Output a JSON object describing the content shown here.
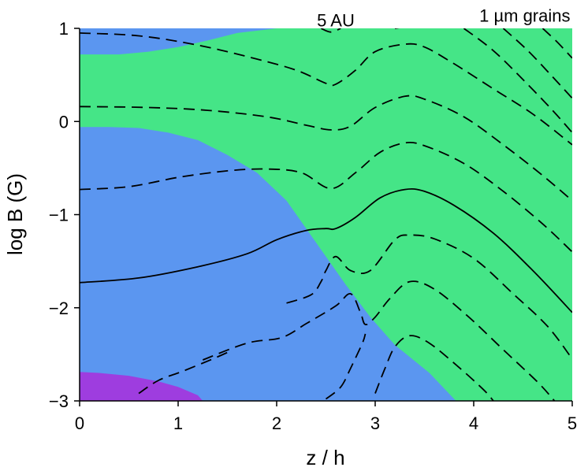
{
  "chart_data": {
    "type": "contour",
    "title": "",
    "xlabel": "z / h",
    "ylabel": "log B (G)",
    "xlim": [
      0,
      5
    ],
    "ylim": [
      -3,
      1
    ],
    "x_ticks": [
      0,
      1,
      2,
      3,
      4,
      5
    ],
    "y_ticks": [
      -3,
      -2,
      -1,
      0,
      1
    ],
    "x_tick_labels": [
      "0",
      "1",
      "2",
      "3",
      "4",
      "5"
    ],
    "y_tick_labels": [
      "−3",
      "−2",
      "−1",
      "0",
      "1"
    ],
    "annotations": [
      {
        "text": "5 AU",
        "x": 2.6,
        "y": 1.02
      },
      {
        "text": "1 µm grains",
        "x": 4.98,
        "y": 1.07
      }
    ],
    "colors": {
      "blue": "#5b96f0",
      "green": "#45e587",
      "purple": "#9e3ddf",
      "line": "#000000"
    },
    "regions": [
      {
        "name": "purple",
        "color": "#9e3ddf",
        "polygon": [
          [
            0,
            -3
          ],
          [
            1.25,
            -3
          ],
          [
            1.2,
            -2.94
          ],
          [
            1.0,
            -2.85
          ],
          [
            0.8,
            -2.79
          ],
          [
            0.5,
            -2.73
          ],
          [
            0.2,
            -2.7
          ],
          [
            0,
            -2.69
          ]
        ]
      },
      {
        "name": "green",
        "color": "#45e587",
        "polygon": [
          [
            0.42,
            1
          ],
          [
            5,
            1
          ],
          [
            5,
            -3
          ],
          [
            3.82,
            -3
          ],
          [
            3.55,
            -2.7
          ],
          [
            3.2,
            -2.4
          ],
          [
            2.95,
            -2.1
          ],
          [
            2.7,
            -1.75
          ],
          [
            2.5,
            -1.45
          ],
          [
            2.3,
            -1.15
          ],
          [
            2.1,
            -0.85
          ],
          [
            1.8,
            -0.55
          ],
          [
            1.5,
            -0.36
          ],
          [
            1.2,
            -0.2
          ],
          [
            0.9,
            -0.12
          ],
          [
            0.6,
            -0.07
          ],
          [
            0.3,
            -0.06
          ],
          [
            0,
            -0.06
          ],
          [
            0,
            0.72
          ],
          [
            0.4,
            0.72
          ],
          [
            0.7,
            0.75
          ],
          [
            1.0,
            0.8
          ],
          [
            1.3,
            0.87
          ],
          [
            1.6,
            0.95
          ],
          [
            2.0,
            1
          ]
        ]
      }
    ],
    "contours": [
      {
        "style": "dashed",
        "points": [
          [
            0,
            0.95
          ],
          [
            0.6,
            0.92
          ],
          [
            1.2,
            0.82
          ],
          [
            1.8,
            0.67
          ],
          [
            2.2,
            0.55
          ],
          [
            2.5,
            0.41
          ],
          [
            2.6,
            0.4
          ],
          [
            2.8,
            0.55
          ],
          [
            3.0,
            0.75
          ],
          [
            3.3,
            0.83
          ],
          [
            3.5,
            0.8
          ],
          [
            3.8,
            0.62
          ],
          [
            4.2,
            0.35
          ],
          [
            4.6,
            0.08
          ],
          [
            5.0,
            -0.25
          ]
        ]
      },
      {
        "style": "dashed",
        "points": [
          [
            0,
            0.16
          ],
          [
            0.7,
            0.15
          ],
          [
            1.3,
            0.12
          ],
          [
            1.9,
            0.05
          ],
          [
            2.3,
            -0.04
          ],
          [
            2.55,
            -0.09
          ],
          [
            2.75,
            -0.05
          ],
          [
            3.0,
            0.15
          ],
          [
            3.3,
            0.27
          ],
          [
            3.5,
            0.24
          ],
          [
            3.9,
            0.05
          ],
          [
            4.3,
            -0.25
          ],
          [
            4.7,
            -0.58
          ],
          [
            5.0,
            -0.85
          ]
        ]
      },
      {
        "style": "dashed",
        "points": [
          [
            0,
            -0.73
          ],
          [
            0.5,
            -0.7
          ],
          [
            1.0,
            -0.6
          ],
          [
            1.5,
            -0.53
          ],
          [
            1.9,
            -0.51
          ],
          [
            2.25,
            -0.55
          ],
          [
            2.55,
            -0.72
          ],
          [
            2.8,
            -0.55
          ],
          [
            3.05,
            -0.33
          ],
          [
            3.3,
            -0.23
          ],
          [
            3.5,
            -0.26
          ],
          [
            3.9,
            -0.45
          ],
          [
            4.3,
            -0.75
          ],
          [
            4.7,
            -1.1
          ],
          [
            5.0,
            -1.4
          ]
        ]
      },
      {
        "style": "solid",
        "points": [
          [
            0,
            -1.73
          ],
          [
            0.6,
            -1.68
          ],
          [
            1.2,
            -1.56
          ],
          [
            1.7,
            -1.42
          ],
          [
            2.0,
            -1.27
          ],
          [
            2.3,
            -1.17
          ],
          [
            2.5,
            -1.15
          ],
          [
            2.6,
            -1.15
          ],
          [
            2.8,
            -1.03
          ],
          [
            3.05,
            -0.82
          ],
          [
            3.3,
            -0.73
          ],
          [
            3.5,
            -0.75
          ],
          [
            3.8,
            -0.9
          ],
          [
            4.2,
            -1.2
          ],
          [
            4.6,
            -1.6
          ],
          [
            5.0,
            -2.05
          ]
        ]
      },
      {
        "style": "dashed",
        "points": [
          [
            2.1,
            -1.95
          ],
          [
            2.35,
            -1.86
          ],
          [
            2.45,
            -1.72
          ],
          [
            2.5,
            -1.6
          ],
          [
            2.6,
            -1.45
          ],
          [
            2.75,
            -1.6
          ],
          [
            2.95,
            -1.6
          ],
          [
            3.2,
            -1.27
          ],
          [
            3.35,
            -1.22
          ],
          [
            3.6,
            -1.26
          ],
          [
            4.0,
            -1.47
          ],
          [
            4.4,
            -1.85
          ],
          [
            4.75,
            -2.2
          ],
          [
            5.0,
            -2.55
          ]
        ]
      },
      {
        "style": "dashed",
        "points": [
          [
            1.25,
            -2.56
          ],
          [
            1.7,
            -2.38
          ],
          [
            2.05,
            -2.32
          ],
          [
            2.3,
            -2.17
          ],
          [
            2.6,
            -1.98
          ],
          [
            2.75,
            -1.85
          ],
          [
            2.85,
            -2.05
          ],
          [
            2.9,
            -2.18
          ],
          [
            3.0,
            -2.1
          ],
          [
            3.15,
            -1.9
          ],
          [
            3.35,
            -1.72
          ],
          [
            3.6,
            -1.8
          ],
          [
            3.95,
            -2.1
          ],
          [
            4.3,
            -2.45
          ],
          [
            4.65,
            -2.8
          ],
          [
            4.82,
            -3.0
          ]
        ]
      },
      {
        "style": "dashed",
        "points": [
          [
            0.6,
            -2.92
          ],
          [
            0.8,
            -2.78
          ],
          [
            1.05,
            -2.68
          ],
          [
            1.35,
            -2.55
          ],
          [
            1.5,
            -2.48
          ]
        ]
      },
      {
        "style": "dashed",
        "points": [
          [
            2.5,
            -2.98
          ],
          [
            2.65,
            -2.85
          ],
          [
            2.75,
            -2.65
          ],
          [
            2.87,
            -2.38
          ],
          [
            2.9,
            -2.28
          ]
        ]
      },
      {
        "style": "dashed",
        "points": [
          [
            3.0,
            -2.92
          ],
          [
            3.1,
            -2.65
          ],
          [
            3.2,
            -2.42
          ],
          [
            3.35,
            -2.3
          ],
          [
            3.55,
            -2.38
          ],
          [
            3.85,
            -2.64
          ],
          [
            4.1,
            -2.88
          ],
          [
            4.2,
            -3.0
          ]
        ]
      },
      {
        "style": "dashed",
        "points": [
          [
            3.9,
            1.0
          ],
          [
            4.2,
            0.76
          ],
          [
            4.5,
            0.45
          ],
          [
            4.8,
            0.12
          ],
          [
            5.0,
            -0.12
          ]
        ]
      },
      {
        "style": "dashed",
        "points": [
          [
            4.3,
            1.0
          ],
          [
            4.55,
            0.76
          ],
          [
            4.8,
            0.48
          ],
          [
            5.0,
            0.25
          ]
        ]
      },
      {
        "style": "dashed",
        "points": [
          [
            4.7,
            1.0
          ],
          [
            4.85,
            0.85
          ],
          [
            5.0,
            0.68
          ]
        ]
      },
      {
        "style": "dashed",
        "points": [
          [
            2.45,
            1.0
          ],
          [
            2.55,
            0.96
          ],
          [
            2.65,
            1.0
          ]
        ]
      },
      {
        "style": "dashed",
        "points": [
          [
            3.2,
            1.0
          ],
          [
            3.5,
            1.05
          ]
        ]
      }
    ]
  }
}
